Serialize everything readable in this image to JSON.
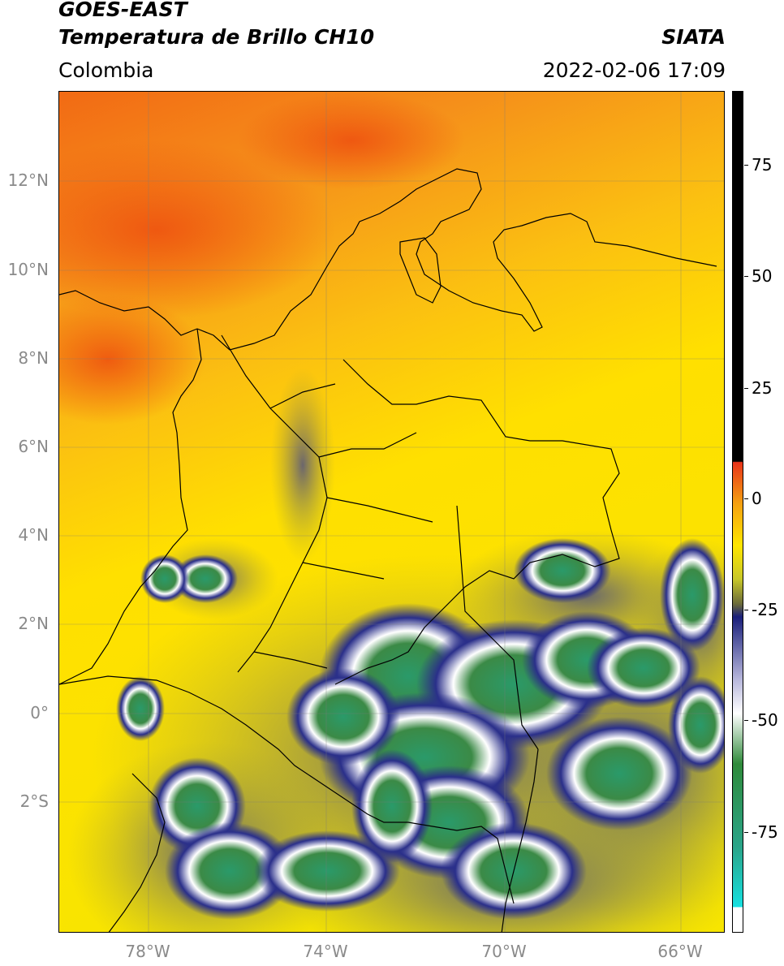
{
  "header": {
    "title_line1": "GOES-EAST",
    "title_line2": "Temperatura de Brillo CH10",
    "region": "Colombia",
    "organization": "SIATA",
    "timestamp": "2022-02-06 17:09"
  },
  "map": {
    "latitude_labels": [
      "12°N",
      "10°N",
      "8°N",
      "6°N",
      "4°N",
      "2°N",
      "0°",
      "2°S"
    ],
    "longitude_labels": [
      "78°W",
      "74°W",
      "70°W",
      "66°W"
    ]
  },
  "colorbar": {
    "tick_labels": [
      "75",
      "50",
      "25",
      "0",
      "-25",
      "-50",
      "-75"
    ],
    "colors": {
      "top": "#000000",
      "warm": "#e8341a",
      "orange": "#f5a011",
      "yellow": "#ffe600",
      "olive": "#9c9c3a",
      "navy": "#1a1f7a",
      "white": "#ffffff",
      "green": "#2f8a3a",
      "teal": "#2aa58a",
      "cyan": "#17e0e0"
    }
  }
}
